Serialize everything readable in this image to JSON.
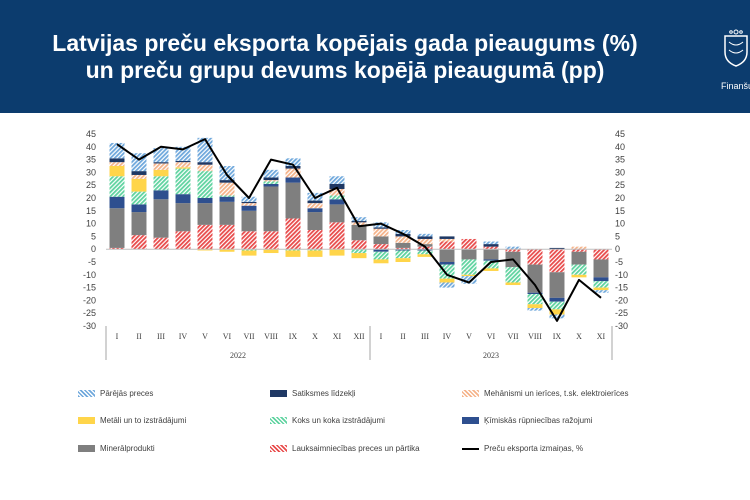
{
  "header": {
    "title_line1": "Latvijas preču eksporta kopējais gada pieaugums (%)",
    "title_line2": "un preču grupu devums kopējā pieaugumā (pp)",
    "logo_text": "Finanšu",
    "background": "#0c3c6e"
  },
  "chart_data": {
    "type": "bar",
    "stacked": true,
    "categories": [
      "I",
      "II",
      "III",
      "IV",
      "V",
      "VI",
      "VII",
      "VIII",
      "IX",
      "X",
      "XI",
      "XII",
      "I",
      "II",
      "III",
      "IV",
      "V",
      "VI",
      "VII",
      "VIII",
      "IX",
      "X",
      "XI"
    ],
    "year_groups": [
      {
        "label": "2022",
        "count": 12
      },
      {
        "label": "2023",
        "count": 11
      }
    ],
    "ylim": [
      -30,
      45
    ],
    "yticks": [
      45,
      40,
      35,
      30,
      25,
      20,
      15,
      10,
      5,
      0,
      -5,
      -10,
      -15,
      -20,
      -25,
      -30
    ],
    "grid": false,
    "legend_position": "bottom",
    "series": [
      {
        "name": "Lauksaimniecības preces un pārtika",
        "color": "#e84b4b",
        "pattern": "hatch",
        "values": [
          0.5,
          5.5,
          4.5,
          7,
          9.5,
          9.5,
          7,
          7,
          12,
          7.5,
          10.5,
          3.5,
          2,
          0.5,
          1,
          3,
          4,
          1,
          -1,
          -6,
          -9,
          -1,
          -4
        ]
      },
      {
        "name": "Minerālprodukti",
        "color": "#7f7f7f",
        "pattern": "solid",
        "values": [
          15.5,
          9,
          15,
          11,
          8.5,
          9,
          8,
          17.5,
          14,
          7,
          7,
          6,
          3,
          2,
          1,
          -5,
          -4,
          -4,
          -6,
          -11,
          -10,
          -5,
          -7
        ]
      },
      {
        "name": "Ķīmiskās rūpniecības ražojumi",
        "color": "#2e4f8f",
        "pattern": "solid",
        "values": [
          4.5,
          3,
          3.5,
          3.5,
          2,
          2,
          2,
          1,
          2,
          1.5,
          2,
          0,
          -1,
          -0.5,
          -0.5,
          -1,
          0,
          -0.5,
          0,
          -0.5,
          -1.5,
          0,
          -1.5
        ]
      },
      {
        "name": "Koks un koka izstrādājumi",
        "color": "#5fd3a0",
        "pattern": "hatch",
        "values": [
          8,
          5,
          5.5,
          10,
          10.5,
          0.5,
          -0.5,
          1,
          -0.5,
          -0.5,
          1.5,
          -1.5,
          -3,
          -3,
          -1.5,
          -5.5,
          -6,
          -3,
          -6,
          -4,
          -3,
          -4,
          -2.5
        ]
      },
      {
        "name": "Metāli un to izstrādājumi",
        "color": "#ffd54a",
        "pattern": "solid",
        "values": [
          4,
          5,
          2.5,
          0.5,
          -0.5,
          -1,
          -2,
          -1.5,
          -2.5,
          -2.5,
          -2.5,
          -2,
          -1.5,
          -1.5,
          -1,
          -1.5,
          -0.5,
          -1,
          -1,
          -1.5,
          -2,
          -1,
          -1
        ]
      },
      {
        "name": "Mehānismi un ierīces, t.sk. elektroierīces",
        "color": "#f5b38a",
        "pattern": "hatch",
        "values": [
          1.5,
          1.5,
          2.5,
          2,
          2.5,
          5,
          1,
          0.5,
          3.5,
          2,
          2.5,
          1,
          3,
          2.5,
          2,
          1,
          0,
          0,
          0,
          0,
          0,
          1,
          0
        ]
      },
      {
        "name": "Satiksmes līdzekļi",
        "color": "#1f3864",
        "pattern": "solid",
        "values": [
          1.5,
          1.5,
          0.5,
          0.5,
          1,
          1,
          0.5,
          1,
          1,
          1,
          2,
          0.5,
          0.5,
          1,
          1,
          1,
          0,
          1,
          0,
          0,
          0.5,
          0,
          0
        ]
      },
      {
        "name": "Pārējās preces",
        "color": "#6fa8dc",
        "pattern": "hatch",
        "values": [
          6,
          7,
          5.5,
          5.5,
          9.5,
          5.5,
          2,
          3,
          3,
          3,
          3,
          1.5,
          2,
          1.5,
          1,
          -2,
          -3,
          1,
          1,
          -1,
          -1.5,
          0,
          -1
        ]
      }
    ],
    "line": {
      "name": "Preču eksporta izmaiņas, %",
      "color": "#000000",
      "values": [
        41,
        35,
        40,
        39,
        43,
        29,
        20,
        35,
        33,
        20,
        24,
        9,
        10,
        6,
        1,
        -10,
        -13,
        -5,
        -4,
        -14,
        -28,
        -12,
        -19
      ]
    }
  }
}
